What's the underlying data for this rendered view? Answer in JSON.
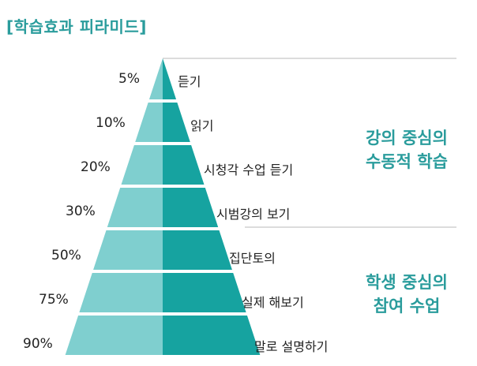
{
  "title": "[학습효과 피라미드]",
  "levels": [
    {
      "percent": "5%",
      "label": "듣기"
    },
    {
      "percent": "10%",
      "label": "읽기"
    },
    {
      "percent": "20%",
      "label": "시청각 수업 듣기"
    },
    {
      "percent": "30%",
      "label": "시범강의 보기"
    },
    {
      "percent": "50%",
      "label": "집단토의"
    },
    {
      "percent": "75%",
      "label": "실제 해보기"
    },
    {
      "percent": "90%",
      "label": "말로 설명하기"
    }
  ],
  "groups": [
    {
      "line1": "강의 중심의",
      "line2": "수동적 학습"
    },
    {
      "line1": "학생 중심의",
      "line2": "참여 수업"
    }
  ],
  "colors": {
    "accent": "#2a9c9c",
    "light": "#7fcfcf",
    "dark": "#16a3a0",
    "divider": "#b9b9b9"
  }
}
